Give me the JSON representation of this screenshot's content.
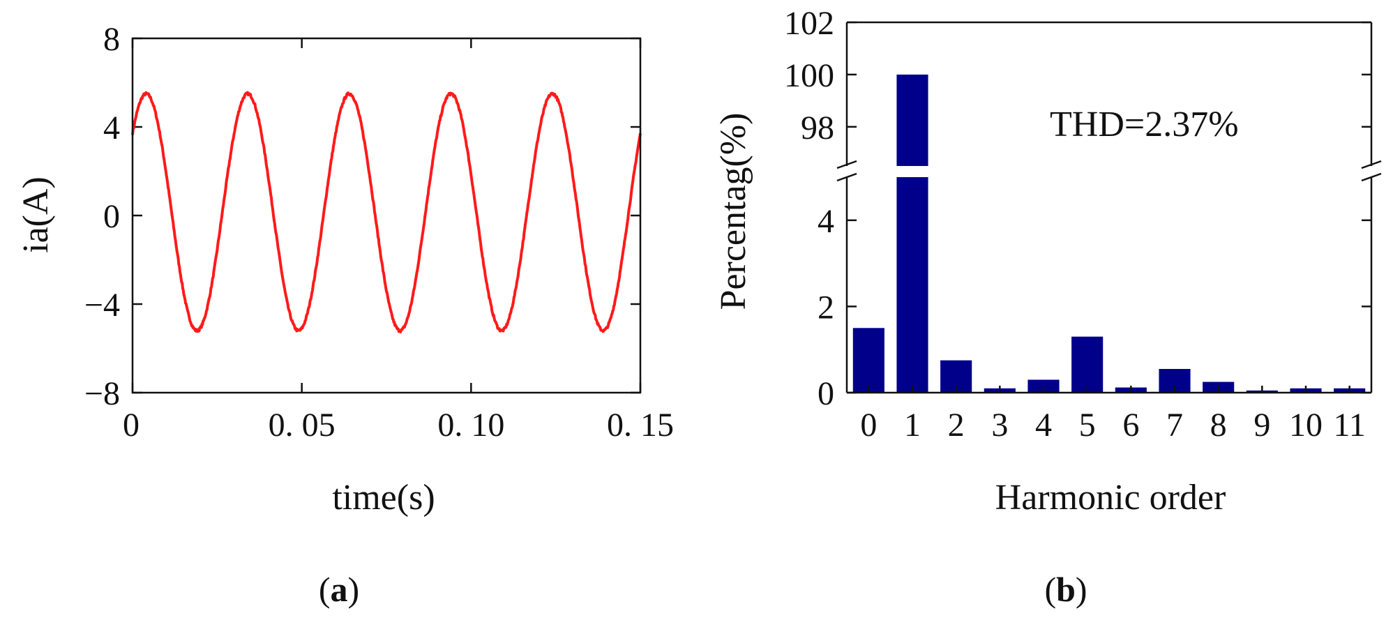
{
  "chart_data": [
    {
      "id": "a",
      "type": "line",
      "panel_label_parts": [
        "(",
        "a",
        ")"
      ],
      "xlabel": "time(s)",
      "ylabel": "ia(A)",
      "xlim": [
        0,
        0.15
      ],
      "ylim": [
        -8,
        8
      ],
      "xticks": [
        {
          "value": 0,
          "label": "0"
        },
        {
          "value": 0.05,
          "label": "0. 05"
        },
        {
          "value": 0.1,
          "label": "0. 10"
        },
        {
          "value": 0.15,
          "label": "0. 15"
        }
      ],
      "yticks": [
        {
          "value": 8,
          "label": "8"
        },
        {
          "value": 4,
          "label": "4"
        },
        {
          "value": 0,
          "label": "0"
        },
        {
          "value": -4,
          "label": "−4"
        },
        {
          "value": -8,
          "label": "−8"
        }
      ],
      "series": [
        {
          "name": "ia",
          "color": "#ff1a1a",
          "frequency_hz": 33.33,
          "peak_positive": 5.5,
          "peak_negative": -5.2,
          "offset": 0.15,
          "value_at_t0": 3.7
        }
      ]
    },
    {
      "id": "b",
      "type": "bar",
      "panel_label_parts": [
        "(",
        "b",
        ")"
      ],
      "xlabel": "Harmonic order",
      "ylabel": "Percentag(%)",
      "annotation": "THD=2.37%",
      "bar_color": "#00008b",
      "categories": [
        "0",
        "1",
        "2",
        "3",
        "4",
        "5",
        "6",
        "7",
        "8",
        "9",
        "10",
        "11"
      ],
      "values": [
        1.5,
        100,
        0.75,
        0.1,
        0.3,
        1.3,
        0.12,
        0.55,
        0.25,
        0.05,
        0.1,
        0.1
      ],
      "y_axis_break": {
        "lower_range": [
          0,
          5
        ],
        "upper_range": [
          96.5,
          102
        ]
      },
      "yticks_lower": [
        {
          "value": 0,
          "label": "0"
        },
        {
          "value": 2,
          "label": "2"
        },
        {
          "value": 4,
          "label": "4"
        }
      ],
      "yticks_upper": [
        {
          "value": 98,
          "label": "98"
        },
        {
          "value": 100,
          "label": "100"
        },
        {
          "value": 102,
          "label": "102"
        }
      ]
    }
  ]
}
